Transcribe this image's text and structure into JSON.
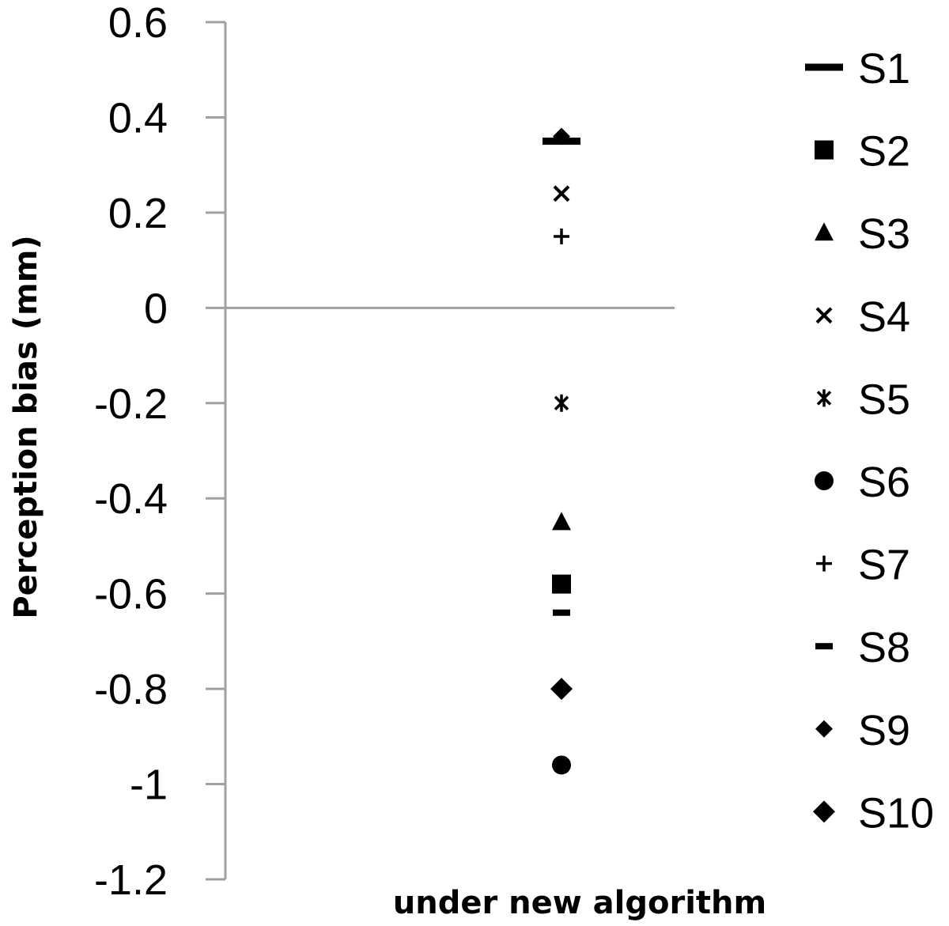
{
  "chart_data": {
    "type": "scatter",
    "title": "",
    "xlabel": "under new algorithm",
    "ylabel": "Perception bias (mm)",
    "ylim": [
      -1.2,
      0.6
    ],
    "y_ticks": [
      {
        "value": 0.6,
        "label": "0.6"
      },
      {
        "value": 0.4,
        "label": "0.4"
      },
      {
        "value": 0.2,
        "label": "0.2"
      },
      {
        "value": 0,
        "label": "0"
      },
      {
        "value": -0.2,
        "label": "-0.2"
      },
      {
        "value": -0.4,
        "label": "-0.4"
      },
      {
        "value": -0.6,
        "label": "-0.6"
      },
      {
        "value": -0.8,
        "label": "-0.8"
      },
      {
        "value": -1,
        "label": "-1"
      },
      {
        "value": -1.2,
        "label": "-1.2"
      }
    ],
    "grid": false,
    "legend_position": "right",
    "series": [
      {
        "name": "S1",
        "marker": "dash",
        "y": 0.35
      },
      {
        "name": "S2",
        "marker": "square",
        "y": -0.58
      },
      {
        "name": "S3",
        "marker": "triangle",
        "y": -0.45
      },
      {
        "name": "S4",
        "marker": "x",
        "y": 0.24
      },
      {
        "name": "S5",
        "marker": "star",
        "y": -0.2
      },
      {
        "name": "S6",
        "marker": "circle",
        "y": -0.96
      },
      {
        "name": "S7",
        "marker": "plus",
        "y": 0.15
      },
      {
        "name": "S8",
        "marker": "short-dash",
        "y": -0.64
      },
      {
        "name": "S9",
        "marker": "diamond-small",
        "y": 0.36
      },
      {
        "name": "S10",
        "marker": "diamond",
        "y": -0.8
      }
    ],
    "colors": {
      "marker": "#000000",
      "axis": "#a0a0a0"
    }
  }
}
